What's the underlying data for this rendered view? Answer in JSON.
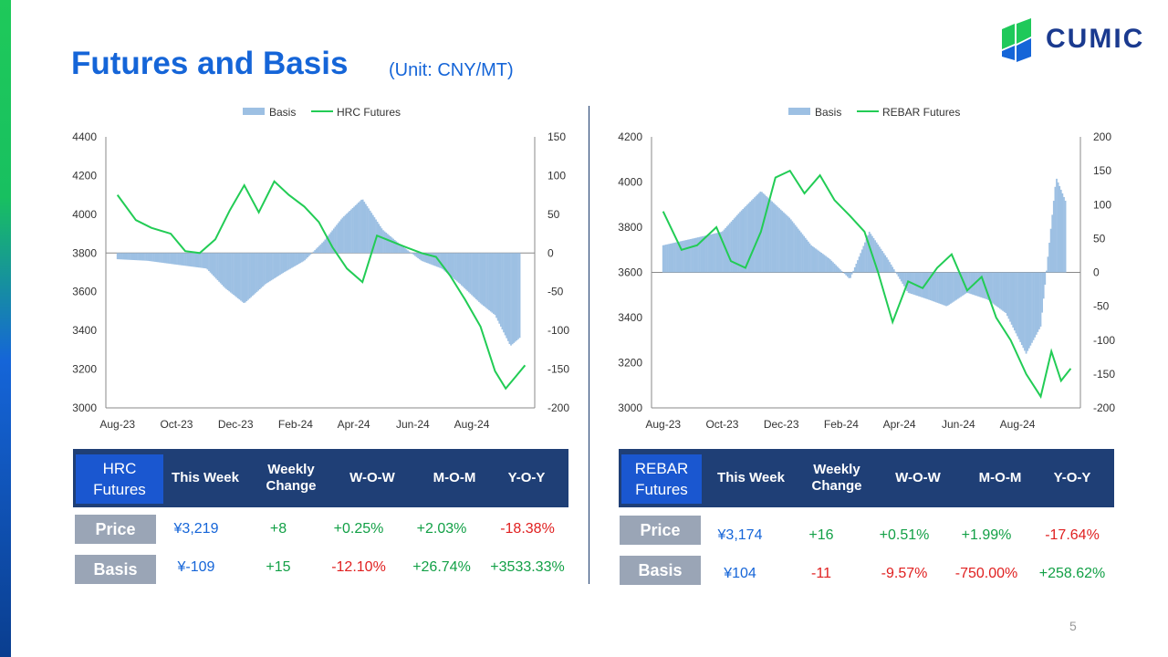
{
  "slide": {
    "title": "Futures and Basis",
    "unit": "(Unit: CNY/MT)",
    "logo_text": "CUMIC",
    "page_number": "5"
  },
  "colors": {
    "basis": "#9dc0e3",
    "futures_line": "#22cc55",
    "title_blue": "#1565d8",
    "header_navy": "#1f3f76",
    "label_gray": "#9aa5b6",
    "positive": "#12a046",
    "negative": "#e02020"
  },
  "chart_data": [
    {
      "type": "line",
      "legend": [
        "Basis",
        "HRC Futures"
      ],
      "x_ticks": [
        "Aug-23",
        "Oct-23",
        "Dec-23",
        "Feb-24",
        "Apr-24",
        "Jun-24",
        "Aug-24"
      ],
      "y_left_ticks": [
        "4400",
        "4200",
        "4000",
        "3800",
        "3600",
        "3400",
        "3200",
        "3000"
      ],
      "y_right_ticks": [
        "150",
        "100",
        "50",
        "0",
        "-50",
        "-100",
        "-150",
        "-200"
      ],
      "ylim_left": [
        3000,
        4400
      ],
      "ylim_right": [
        -200,
        150
      ],
      "series": [
        {
          "name": "HRC Futures",
          "axis": "left",
          "type": "line",
          "x": [
            "2023-08-01",
            "2023-08-20",
            "2023-09-05",
            "2023-09-25",
            "2023-10-10",
            "2023-10-25",
            "2023-11-10",
            "2023-11-25",
            "2023-12-10",
            "2023-12-25",
            "2024-01-10",
            "2024-01-25",
            "2024-02-10",
            "2024-02-25",
            "2024-03-10",
            "2024-03-25",
            "2024-04-10",
            "2024-04-25",
            "2024-05-10",
            "2024-05-25",
            "2024-06-10",
            "2024-06-25",
            "2024-07-10",
            "2024-07-25",
            "2024-08-10",
            "2024-08-25",
            "2024-09-05",
            "2024-09-15",
            "2024-09-25"
          ],
          "values": [
            4100,
            3970,
            3930,
            3900,
            3810,
            3800,
            3870,
            4020,
            4150,
            4010,
            4170,
            4100,
            4040,
            3960,
            3830,
            3720,
            3650,
            3890,
            3860,
            3830,
            3800,
            3780,
            3680,
            3560,
            3420,
            3190,
            3100,
            3160,
            3220
          ]
        },
        {
          "name": "Basis",
          "axis": "right",
          "type": "bar",
          "x": [
            "2023-08-01",
            "2023-09-01",
            "2023-10-01",
            "2023-11-01",
            "2023-11-20",
            "2023-12-10",
            "2024-01-01",
            "2024-01-20",
            "2024-02-10",
            "2024-03-01",
            "2024-03-20",
            "2024-04-10",
            "2024-05-01",
            "2024-05-20",
            "2024-06-10",
            "2024-07-01",
            "2024-07-20",
            "2024-08-10",
            "2024-08-25",
            "2024-09-10",
            "2024-09-20"
          ],
          "values": [
            -8,
            -10,
            -15,
            -20,
            -45,
            -65,
            -40,
            -25,
            -10,
            15,
            45,
            70,
            30,
            10,
            -10,
            -20,
            -40,
            -65,
            -80,
            -120,
            -109
          ]
        }
      ]
    },
    {
      "type": "line",
      "legend": [
        "Basis",
        "REBAR Futures"
      ],
      "x_ticks": [
        "Aug-23",
        "Oct-23",
        "Dec-23",
        "Feb-24",
        "Apr-24",
        "Jun-24",
        "Aug-24"
      ],
      "y_left_ticks": [
        "4200",
        "4000",
        "3800",
        "3600",
        "3400",
        "3200",
        "3000"
      ],
      "y_right_ticks": [
        "200",
        "150",
        "100",
        "50",
        "0",
        "-50",
        "-100",
        "-150",
        "-200"
      ],
      "ylim_left": [
        3000,
        4200
      ],
      "ylim_right": [
        -200,
        200
      ],
      "series": [
        {
          "name": "REBAR Futures",
          "axis": "left",
          "type": "line",
          "x": [
            "2023-08-01",
            "2023-08-20",
            "2023-09-05",
            "2023-09-25",
            "2023-10-10",
            "2023-10-25",
            "2023-11-10",
            "2023-11-25",
            "2023-12-10",
            "2023-12-25",
            "2024-01-10",
            "2024-01-25",
            "2024-02-10",
            "2024-02-25",
            "2024-03-10",
            "2024-03-25",
            "2024-04-10",
            "2024-04-25",
            "2024-05-10",
            "2024-05-25",
            "2024-06-10",
            "2024-06-25",
            "2024-07-10",
            "2024-07-25",
            "2024-08-10",
            "2024-08-25",
            "2024-09-05",
            "2024-09-15",
            "2024-09-25"
          ],
          "values": [
            3870,
            3700,
            3720,
            3800,
            3650,
            3620,
            3780,
            4020,
            4050,
            3950,
            4030,
            3920,
            3850,
            3780,
            3600,
            3380,
            3560,
            3530,
            3620,
            3680,
            3520,
            3580,
            3400,
            3300,
            3150,
            3050,
            3250,
            3120,
            3174
          ]
        },
        {
          "name": "Basis",
          "axis": "right",
          "type": "bar",
          "x": [
            "2023-08-01",
            "2023-09-01",
            "2023-10-01",
            "2023-10-20",
            "2023-11-10",
            "2023-11-25",
            "2023-12-10",
            "2024-01-01",
            "2024-01-20",
            "2024-02-10",
            "2024-03-01",
            "2024-03-20",
            "2024-04-10",
            "2024-05-01",
            "2024-05-20",
            "2024-06-10",
            "2024-07-01",
            "2024-07-20",
            "2024-08-10",
            "2024-08-25",
            "2024-09-10",
            "2024-09-20"
          ],
          "values": [
            40,
            50,
            60,
            90,
            120,
            100,
            80,
            40,
            20,
            -10,
            60,
            20,
            -30,
            -40,
            -50,
            -30,
            -40,
            -60,
            -120,
            -80,
            140,
            104
          ]
        }
      ]
    }
  ],
  "tables": [
    {
      "name": "HRC\nFutures",
      "headers": [
        "This Week",
        "Weekly\nChange",
        "W-O-W",
        "M-O-M",
        "Y-O-Y"
      ],
      "rows": [
        {
          "label": "Price",
          "values": [
            "¥3,219",
            "+8",
            "+0.25%",
            "+2.03%",
            "-18.38%"
          ]
        },
        {
          "label": "Basis",
          "values": [
            "¥-109",
            "+15",
            "-12.10%",
            "+26.74%",
            "+3533.33%"
          ]
        }
      ]
    },
    {
      "name": "REBAR\nFutures",
      "headers": [
        "This Week",
        "Weekly\nChange",
        "W-O-W",
        "M-O-M",
        "Y-O-Y"
      ],
      "rows": [
        {
          "label": "Price",
          "values": [
            "¥3,174",
            "+16",
            "+0.51%",
            "+1.99%",
            "-17.64%"
          ]
        },
        {
          "label": "Basis",
          "values": [
            "¥104",
            "-11",
            "-9.57%",
            "-750.00%",
            "+258.62%"
          ]
        }
      ]
    }
  ]
}
